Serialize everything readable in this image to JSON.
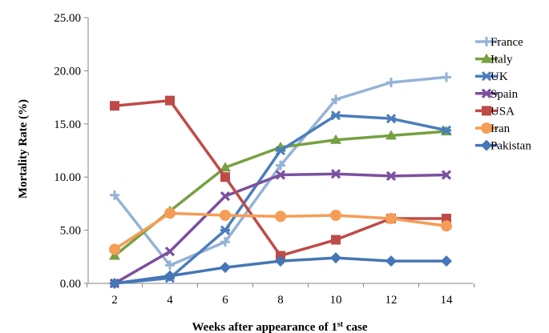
{
  "chart_data": {
    "type": "line",
    "title": "",
    "xlabel_main": "Weeks after appearance of 1",
    "xlabel_sup": "st",
    "xlabel_tail": " case",
    "ylabel": "Mortality Rate (%)",
    "x": [
      2,
      4,
      6,
      8,
      10,
      12,
      14
    ],
    "ylim": [
      0,
      25
    ],
    "yticks": [
      "0.00",
      "5.00",
      "10.00",
      "15.00",
      "20.00",
      "25.00"
    ],
    "grid": false,
    "legend_position": "right",
    "series": [
      {
        "name": "France",
        "color": "#95b3d7",
        "marker": "plus",
        "values": [
          8.3,
          1.7,
          3.9,
          11.1,
          17.3,
          18.9,
          19.4
        ]
      },
      {
        "name": "Italy",
        "color": "#77a040",
        "marker": "triangle",
        "values": [
          2.6,
          6.8,
          10.9,
          12.8,
          13.5,
          13.9,
          14.3
        ]
      },
      {
        "name": "UK",
        "color": "#4a7ebb",
        "marker": "star",
        "values": [
          0.0,
          0.5,
          5.0,
          12.5,
          15.8,
          15.5,
          14.4
        ]
      },
      {
        "name": "Spain",
        "color": "#7b4f9e",
        "marker": "x",
        "values": [
          0.0,
          3.0,
          8.2,
          10.2,
          10.3,
          10.1,
          10.2
        ]
      },
      {
        "name": "USA",
        "color": "#be4b48",
        "marker": "square",
        "values": [
          16.7,
          17.2,
          10.0,
          2.6,
          4.1,
          6.1,
          6.1
        ]
      },
      {
        "name": "Iran",
        "color": "#f59d56",
        "marker": "circle",
        "values": [
          3.2,
          6.6,
          6.4,
          6.3,
          6.4,
          6.1,
          5.4
        ]
      },
      {
        "name": "Pakistan",
        "color": "#4576b5",
        "marker": "diamond",
        "values": [
          0.0,
          0.7,
          1.5,
          2.1,
          2.4,
          2.1,
          2.1
        ]
      }
    ]
  }
}
